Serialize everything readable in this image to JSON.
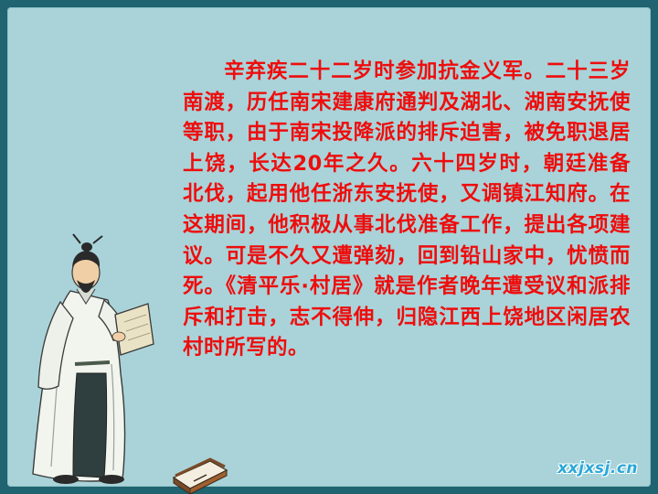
{
  "slide": {
    "paragraph": "辛弃疾二十二岁时参加抗金义军。二十三岁南渡，历任南宋建康府通判及湖北、湖南安抚使等职，由于南宋投降派的排斥迫害，被免职退居上饶，长达20年之久。六十四岁时，朝廷准备北伐，起用他任浙东安抚使，又调镇江知府。在这期间，他积极从事北伐准备工作，提出各项建议。可是不久又遭弹劾，回到铅山家中，忧愤而死。《清平乐·村居》就是作者晚年遭受议和派排斥和打击，志不得伸，归隐江西上饶地区闲居农村时所写的。",
    "watermark": "xxjxsj.cn"
  },
  "colors": {
    "page_border": "#1f6470",
    "slide_background": "#a9d3d8",
    "text": "#ee0d0d",
    "watermark": "#2aa8d8"
  },
  "icons": {
    "illustration": "scholar-holding-book-icon",
    "decoration": "closed-book-icon"
  }
}
